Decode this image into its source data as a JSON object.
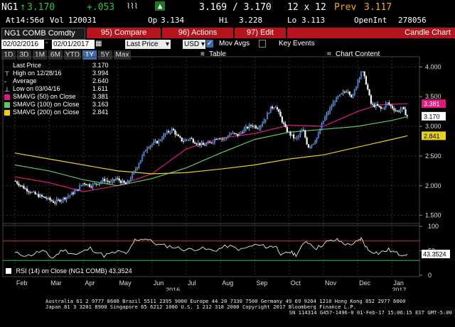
{
  "quote": {
    "ticker": "NG1",
    "last": "3.170",
    "change": "+.053",
    "bid_ask": "3.169 / 3.170",
    "size": "12 x 12",
    "prev_label": "Prev",
    "prev": "3.117",
    "time_label": "At",
    "time": "14:56d",
    "vol_label": "Vol",
    "vol": "120031",
    "open_label": "Op",
    "open": "3.134",
    "high_label": "Hi",
    "high": "3.228",
    "low_label": "Lo",
    "low": "3.113",
    "oi_label": "OpenInt",
    "oi": "278056"
  },
  "toolbar": {
    "security": "NG1 COMB Comdty",
    "compare": "95) Compare",
    "actions": "96) Actions",
    "edit": "97) Edit",
    "chart_type": "Candle Chart"
  },
  "settings": {
    "start_date": "02/02/2016",
    "end_date": "02/01/2017",
    "price_field": "Last Price",
    "currency": "USD",
    "mov_avgs": "Mov Avgs",
    "key_events": "Key Events",
    "chart_content": "Chart Content"
  },
  "periods": [
    "1D",
    "3D",
    "1M",
    "6M",
    "YTD",
    "1Y",
    "5Y",
    "Max"
  ],
  "selected_period": "1Y",
  "period_extra": "Table",
  "legend": [
    {
      "label": "Last Price",
      "value": "3.170",
      "color": "#ffffff",
      "marker": "none"
    },
    {
      "label": "High on 12/28/16",
      "value": "3.994",
      "color": "#ffffff",
      "marker": "tee"
    },
    {
      "label": "Average",
      "value": "2.640",
      "color": "#ffffff",
      "marker": "dash"
    },
    {
      "label": "Low on 03/04/16",
      "value": "1.611",
      "color": "#ffffff",
      "marker": "tee-down"
    },
    {
      "label": "SMAVG (50) on Close",
      "value": "3.381",
      "color": "#e0197d",
      "marker": "box"
    },
    {
      "label": "SMAVG (100) on Close",
      "value": "3.163",
      "color": "#5cc95c",
      "marker": "box"
    },
    {
      "label": "SMAVG (200) on Close",
      "value": "2.841",
      "color": "#e6d21a",
      "marker": "box"
    }
  ],
  "price_axis": {
    "ticks": [
      "4.000",
      "3.500",
      "3.000",
      "2.500",
      "2.000",
      "1.500"
    ],
    "tags": [
      {
        "label": "3.381",
        "bg": "#e0197d",
        "fg": "#ffffff"
      },
      {
        "label": "3.170",
        "bg": "#ffffff",
        "fg": "#000000"
      },
      {
        "label": "2.841",
        "bg": "#e6d21a",
        "fg": "#000000"
      }
    ]
  },
  "rsi": {
    "legend": "RSI (14) on Close (NG1 COMB) 43.3524",
    "tag": "43.3524",
    "ticks": [
      "100",
      "50",
      "0"
    ]
  },
  "x_axis": {
    "months": [
      "Feb",
      "Mar",
      "Apr",
      "May",
      "Jun",
      "Jul",
      "Aug",
      "Sep",
      "Oct",
      "Nov",
      "Dec",
      "Jan"
    ],
    "years": [
      "2016",
      "2017"
    ]
  },
  "chart_data": {
    "type": "candlestick",
    "ylim": [
      1.4,
      4.1
    ],
    "x": [
      "2016-02",
      "2016-03",
      "2016-04",
      "2016-05",
      "2016-06",
      "2016-07",
      "2016-08",
      "2016-09",
      "2016-10",
      "2016-11",
      "2016-12",
      "2017-01"
    ],
    "close_path": [
      [
        0,
        2.08
      ],
      [
        0.3,
        1.95
      ],
      [
        0.6,
        1.85
      ],
      [
        0.95,
        1.78
      ],
      [
        1.15,
        1.72
      ],
      [
        1.4,
        1.78
      ],
      [
        1.6,
        1.84
      ],
      [
        1.8,
        1.92
      ],
      [
        2.0,
        2.05
      ],
      [
        2.2,
        2.0
      ],
      [
        2.4,
        2.04
      ],
      [
        2.6,
        2.1
      ],
      [
        2.8,
        2.05
      ],
      [
        2.95,
        2.12
      ],
      [
        3.1,
        2.07
      ],
      [
        3.25,
        2.02
      ],
      [
        3.45,
        2.2
      ],
      [
        3.65,
        2.42
      ],
      [
        3.85,
        2.65
      ],
      [
        4.0,
        2.7
      ],
      [
        4.2,
        2.75
      ],
      [
        4.4,
        2.88
      ],
      [
        4.6,
        2.95
      ],
      [
        4.75,
        2.82
      ],
      [
        4.9,
        2.75
      ],
      [
        5.1,
        2.8
      ],
      [
        5.3,
        2.72
      ],
      [
        5.5,
        2.68
      ],
      [
        5.7,
        2.72
      ],
      [
        5.9,
        2.82
      ],
      [
        6.1,
        2.78
      ],
      [
        6.3,
        2.88
      ],
      [
        6.5,
        2.85
      ],
      [
        6.7,
        2.95
      ],
      [
        6.9,
        3.02
      ],
      [
        7.1,
        2.98
      ],
      [
        7.3,
        3.12
      ],
      [
        7.45,
        3.3
      ],
      [
        7.6,
        3.35
      ],
      [
        7.75,
        3.15
      ],
      [
        7.9,
        2.95
      ],
      [
        8.05,
        2.85
      ],
      [
        8.2,
        2.78
      ],
      [
        8.4,
        2.95
      ],
      [
        8.55,
        2.65
      ],
      [
        8.7,
        2.72
      ],
      [
        8.85,
        2.85
      ],
      [
        9.0,
        3.1
      ],
      [
        9.2,
        3.3
      ],
      [
        9.35,
        3.45
      ],
      [
        9.55,
        3.55
      ],
      [
        9.7,
        3.62
      ],
      [
        9.85,
        3.48
      ],
      [
        10.0,
        3.78
      ],
      [
        10.12,
        3.95
      ],
      [
        10.25,
        3.72
      ],
      [
        10.4,
        3.35
      ],
      [
        10.55,
        3.35
      ],
      [
        10.7,
        3.28
      ],
      [
        10.85,
        3.4
      ],
      [
        11.0,
        3.32
      ],
      [
        11.15,
        3.25
      ],
      [
        11.3,
        3.3
      ],
      [
        11.45,
        3.17
      ]
    ],
    "high": 3.994,
    "high_date": "12/28/16",
    "low": 1.611,
    "low_date": "03/04/16",
    "average": 2.64,
    "last": 3.17,
    "series": [
      {
        "name": "SMAVG (50) on Close",
        "last": 3.381,
        "path": [
          [
            0,
            2.15
          ],
          [
            1,
            2.05
          ],
          [
            2,
            1.9
          ],
          [
            3,
            2.0
          ],
          [
            4,
            2.2
          ],
          [
            5,
            2.62
          ],
          [
            6,
            2.8
          ],
          [
            7,
            2.88
          ],
          [
            8,
            3.02
          ],
          [
            9,
            3.0
          ],
          [
            10,
            3.25
          ],
          [
            10.6,
            3.36
          ],
          [
            11.45,
            3.381
          ]
        ]
      },
      {
        "name": "SMAVG (100) on Close",
        "last": 3.163,
        "path": [
          [
            0,
            2.35
          ],
          [
            1,
            2.25
          ],
          [
            2,
            2.1
          ],
          [
            3,
            2.0
          ],
          [
            4,
            2.12
          ],
          [
            5,
            2.3
          ],
          [
            6,
            2.55
          ],
          [
            7,
            2.78
          ],
          [
            8,
            2.9
          ],
          [
            9,
            2.95
          ],
          [
            10,
            3.0
          ],
          [
            11,
            3.1
          ],
          [
            11.45,
            3.163
          ]
        ]
      },
      {
        "name": "SMAVG (200) on Close",
        "last": 2.841,
        "path": [
          [
            0,
            2.55
          ],
          [
            1,
            2.45
          ],
          [
            2,
            2.35
          ],
          [
            3,
            2.25
          ],
          [
            4,
            2.2
          ],
          [
            5,
            2.22
          ],
          [
            6,
            2.28
          ],
          [
            7,
            2.35
          ],
          [
            8,
            2.45
          ],
          [
            9,
            2.52
          ],
          [
            10,
            2.65
          ],
          [
            11,
            2.78
          ],
          [
            11.45,
            2.841
          ]
        ]
      }
    ],
    "rsi": {
      "ylim": [
        0,
        100
      ],
      "last": 43.3524,
      "bands": [
        70,
        30
      ],
      "path": [
        [
          0,
          45
        ],
        [
          0.4,
          40
        ],
        [
          0.8,
          50
        ],
        [
          1.1,
          35
        ],
        [
          1.4,
          52
        ],
        [
          1.8,
          42
        ],
        [
          2.2,
          55
        ],
        [
          2.6,
          40
        ],
        [
          3.0,
          48
        ],
        [
          3.3,
          45
        ],
        [
          3.5,
          72
        ],
        [
          3.8,
          75
        ],
        [
          4.2,
          62
        ],
        [
          4.6,
          58
        ],
        [
          5.0,
          52
        ],
        [
          5.4,
          55
        ],
        [
          5.8,
          50
        ],
        [
          6.2,
          60
        ],
        [
          6.6,
          52
        ],
        [
          7.0,
          62
        ],
        [
          7.4,
          58
        ],
        [
          7.6,
          60
        ],
        [
          7.8,
          40
        ],
        [
          8.0,
          48
        ],
        [
          8.2,
          42
        ],
        [
          8.5,
          70
        ],
        [
          8.8,
          55
        ],
        [
          9.1,
          68
        ],
        [
          9.4,
          72
        ],
        [
          9.7,
          62
        ],
        [
          10.0,
          68
        ],
        [
          10.1,
          75
        ],
        [
          10.3,
          52
        ],
        [
          10.6,
          45
        ],
        [
          10.9,
          52
        ],
        [
          11.2,
          43
        ],
        [
          11.45,
          43.35
        ]
      ]
    }
  },
  "footer": {
    "line1": "Australia 61 2 9777 8600 Brazil 5511 2395 9000 Europe 44 20 7330 7500 Germany 49 69 9204 1210 Hong Kong 852 2977 6000",
    "line2": "Japan 81 3 3201 8900        Singapore 65 6212 1000       U.S. 1 212 318 2000            Copyright 2017 Bloomberg Finance L.P.",
    "line3": "SN 114314 G457-1496-0 01-Feb-17 15:06:15 EST  GMT-5:00"
  }
}
